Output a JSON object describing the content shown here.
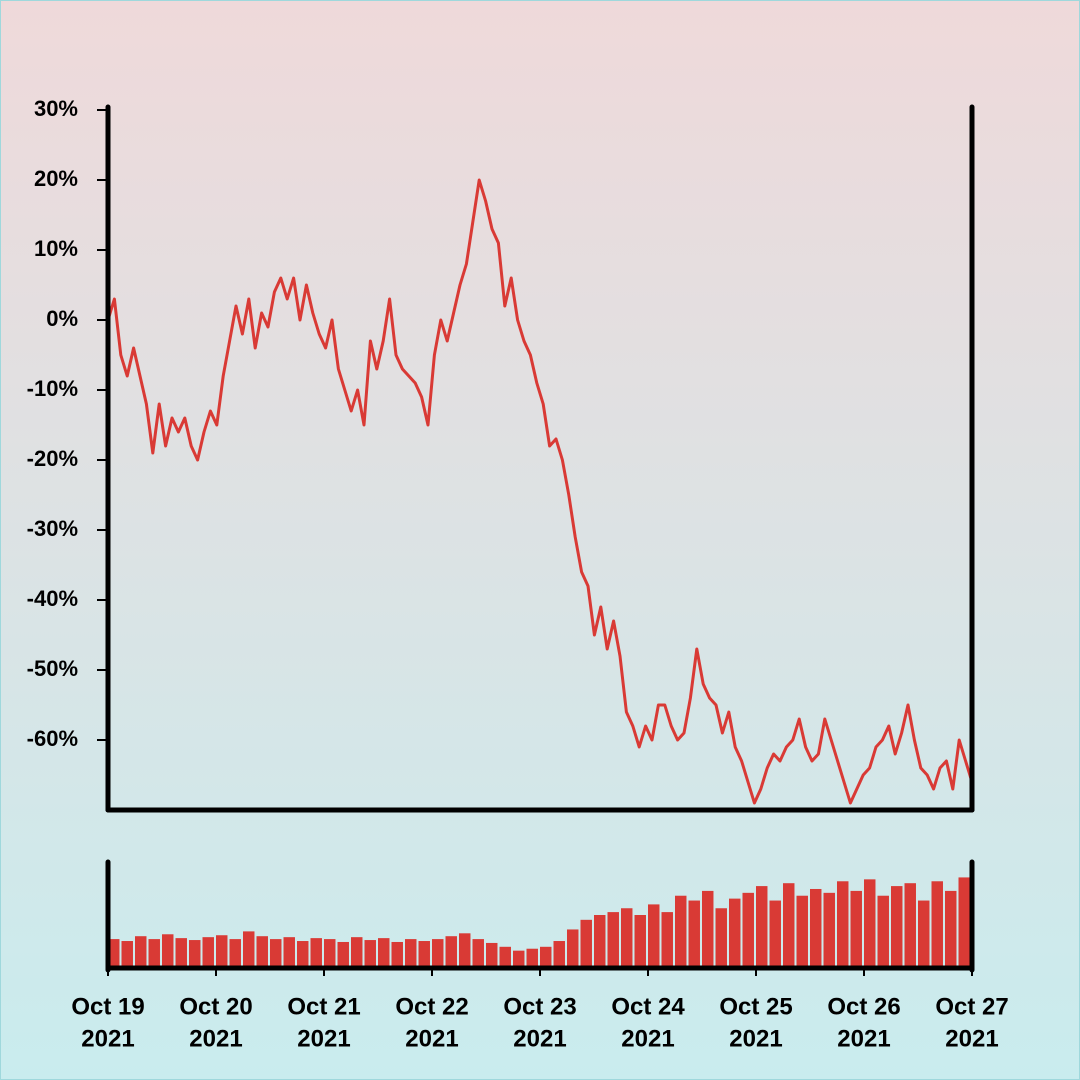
{
  "chart_data": [
    {
      "type": "line",
      "color": "#d93a35",
      "xlim": [
        "2021-10-19",
        "2021-10-27"
      ],
      "ylim": [
        -70,
        30
      ],
      "yticks": [
        {
          "value": 30,
          "label": "30%"
        },
        {
          "value": 20,
          "label": "20%"
        },
        {
          "value": 10,
          "label": "10%"
        },
        {
          "value": 0,
          "label": "0%"
        },
        {
          "value": -10,
          "label": "-10%"
        },
        {
          "value": -20,
          "label": "-20%"
        },
        {
          "value": -30,
          "label": "-30%"
        },
        {
          "value": -40,
          "label": "-40%"
        },
        {
          "value": -50,
          "label": "-50%"
        },
        {
          "value": -60,
          "label": "-60%"
        }
      ],
      "values": [
        0,
        3,
        -5,
        -8,
        -4,
        -8,
        -12,
        -19,
        -12,
        -18,
        -14,
        -16,
        -14,
        -18,
        -20,
        -16,
        -13,
        -15,
        -8,
        -3,
        2,
        -2,
        3,
        -4,
        1,
        -1,
        4,
        6,
        3,
        6,
        0,
        5,
        1,
        -2,
        -4,
        0,
        -7,
        -10,
        -13,
        -10,
        -15,
        -3,
        -7,
        -3,
        3,
        -5,
        -7,
        -8,
        -9,
        -11,
        -15,
        -5,
        0,
        -3,
        1,
        5,
        8,
        14,
        20,
        17,
        13,
        11,
        2,
        6,
        0,
        -3,
        -5,
        -9,
        -12,
        -18,
        -17,
        -20,
        -25,
        -31,
        -36,
        -38,
        -45,
        -41,
        -47,
        -43,
        -48,
        -56,
        -58,
        -61,
        -58,
        -60,
        -55,
        -55,
        -58,
        -60,
        -59,
        -54,
        -47,
        -52,
        -54,
        -55,
        -59,
        -56,
        -61,
        -63,
        -66,
        -69,
        -67,
        -64,
        -62,
        -63,
        -61,
        -60,
        -57,
        -61,
        -63,
        -62,
        -57,
        -60,
        -63,
        -66,
        -69,
        -67,
        -65,
        -64,
        -61,
        -60,
        -58,
        -62,
        -59,
        -55,
        -60,
        -64,
        -65,
        -67,
        -64,
        -63,
        -67,
        -60,
        -63,
        -66
      ]
    },
    {
      "type": "bar",
      "color": "#d93a35",
      "xlim": [
        "2021-10-19",
        "2021-10-27"
      ],
      "ylim": [
        0,
        110
      ],
      "xticks": [
        {
          "value": "2021-10-19",
          "label": [
            "Oct 19",
            "2021"
          ]
        },
        {
          "value": "2021-10-20",
          "label": [
            "Oct 20",
            "2021"
          ]
        },
        {
          "value": "2021-10-21",
          "label": [
            "Oct 21",
            "2021"
          ]
        },
        {
          "value": "2021-10-22",
          "label": [
            "Oct 22",
            "2021"
          ]
        },
        {
          "value": "2021-10-23",
          "label": [
            "Oct 23",
            "2021"
          ]
        },
        {
          "value": "2021-10-24",
          "label": [
            "Oct 24",
            "2021"
          ]
        },
        {
          "value": "2021-10-25",
          "label": [
            "Oct 25",
            "2021"
          ]
        },
        {
          "value": "2021-10-26",
          "label": [
            "Oct 26",
            "2021"
          ]
        },
        {
          "value": "2021-10-27",
          "label": [
            "Oct 27",
            "2021"
          ]
        }
      ],
      "values": [
        30,
        28,
        33,
        30,
        35,
        31,
        29,
        32,
        34,
        30,
        38,
        33,
        30,
        32,
        28,
        31,
        30,
        27,
        32,
        29,
        31,
        27,
        30,
        28,
        30,
        33,
        36,
        30,
        26,
        22,
        18,
        20,
        22,
        28,
        40,
        50,
        55,
        58,
        62,
        55,
        66,
        58,
        75,
        70,
        80,
        62,
        72,
        78,
        85,
        70,
        88,
        75,
        82,
        78,
        90,
        80,
        92,
        75,
        85,
        88,
        70,
        90,
        80,
        94
      ]
    }
  ]
}
